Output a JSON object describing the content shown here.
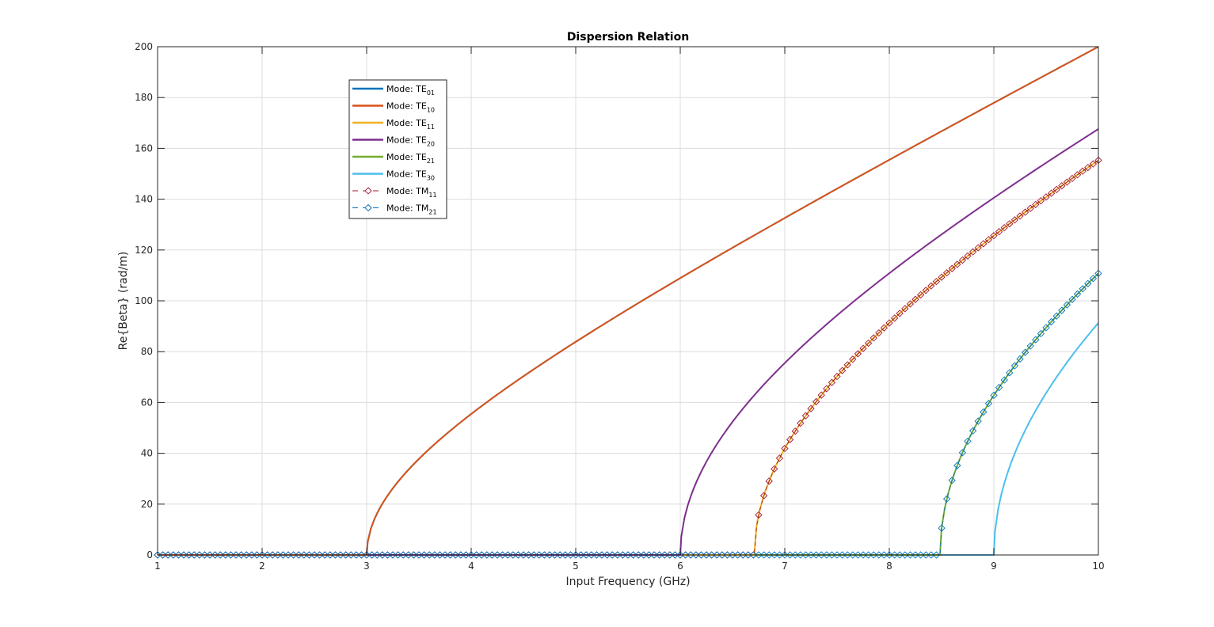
{
  "chart_data": {
    "type": "line",
    "title": "Dispersion Relation",
    "xlabel": "Input Frequency (GHz)",
    "ylabel": "Re{Beta} (rad/m)",
    "xlim": [
      1,
      10
    ],
    "ylim": [
      0,
      200
    ],
    "x_ticks": [
      1,
      2,
      3,
      4,
      5,
      6,
      7,
      8,
      9,
      10
    ],
    "y_ticks": [
      0,
      20,
      40,
      60,
      80,
      100,
      120,
      140,
      160,
      180,
      200
    ],
    "x_tick_labels": [
      "1",
      "2",
      "3",
      "4",
      "5",
      "6",
      "7",
      "8",
      "9",
      "10"
    ],
    "y_tick_labels": [
      "0",
      "20",
      "40",
      "60",
      "80",
      "100",
      "120",
      "140",
      "160",
      "180",
      "200"
    ],
    "grid": true,
    "legend_position": "top-left",
    "series": [
      {
        "label_prefix": "Mode: TE",
        "label_sub": "01",
        "color": "#0072BD",
        "style": "solid",
        "cutoff_ghz": 3.0,
        "beta_at_10ghz": 200,
        "x": [
          3.0,
          3.05,
          3.5,
          4,
          5,
          6,
          7,
          8,
          9,
          10
        ],
        "y": [
          0,
          11.1,
          37.7,
          55.5,
          83.9,
          108.9,
          132.4,
          155.3,
          177.8,
          200
        ]
      },
      {
        "label_prefix": "Mode: TE",
        "label_sub": "10",
        "color": "#D95319",
        "style": "solid",
        "cutoff_ghz": 3.0,
        "beta_at_10ghz": 200,
        "x": [
          3.0,
          3.05,
          3.5,
          4,
          5,
          6,
          7,
          8,
          9,
          10
        ],
        "y": [
          0,
          11.1,
          37.7,
          55.5,
          83.9,
          108.9,
          132.4,
          155.3,
          177.8,
          200
        ]
      },
      {
        "label_prefix": "Mode: TE",
        "label_sub": "11",
        "color": "#EDB120",
        "style": "solid",
        "cutoff_ghz": 6.708,
        "beta_at_10ghz": 155.3,
        "x": [
          6.708,
          6.75,
          7,
          7.5,
          8,
          8.5,
          9,
          9.5,
          10
        ],
        "y": [
          0,
          14.8,
          42.2,
          70.3,
          91.4,
          109.5,
          125.9,
          141.2,
          155.3
        ]
      },
      {
        "label_prefix": "Mode: TE",
        "label_sub": "20",
        "color": "#7E2F8E",
        "style": "solid",
        "cutoff_ghz": 6.0,
        "beta_at_10ghz": 167.6,
        "x": [
          6.0,
          6.05,
          6.5,
          7,
          7.5,
          8,
          8.5,
          9,
          9.5,
          10
        ],
        "y": [
          0,
          16.3,
          52.5,
          75.6,
          94.4,
          111.1,
          126.6,
          140.8,
          154.5,
          167.6
        ]
      },
      {
        "label_prefix": "Mode: TE",
        "label_sub": "21",
        "color": "#77AC30",
        "style": "solid",
        "cutoff_ghz": 8.485,
        "beta_at_10ghz": 110.8,
        "x": [
          8.485,
          8.5,
          8.75,
          9,
          9.25,
          9.5,
          9.75,
          10
        ],
        "y": [
          0,
          10.5,
          44.8,
          62.9,
          77.2,
          89.6,
          100.7,
          110.8
        ]
      },
      {
        "label_prefix": "Mode: TE",
        "label_sub": "30",
        "color": "#4DBEEE",
        "style": "solid",
        "cutoff_ghz": 9.0,
        "beta_at_10ghz": 91.3,
        "x": [
          9.0,
          9.05,
          9.25,
          9.5,
          9.75,
          10
        ],
        "y": [
          0,
          20.1,
          48.7,
          67.6,
          80.4,
          91.3
        ]
      },
      {
        "label_prefix": "Mode: TM",
        "label_sub": "11",
        "color": "#A2142F",
        "style": "dashed-diamond",
        "cutoff_ghz": 6.708,
        "beta_at_10ghz": 155.3,
        "x": [
          6.708,
          6.75,
          7,
          7.5,
          8,
          8.5,
          9,
          9.5,
          10
        ],
        "y": [
          0,
          14.8,
          42.2,
          70.3,
          91.4,
          109.5,
          125.9,
          141.2,
          155.3
        ]
      },
      {
        "label_prefix": "Mode: TM",
        "label_sub": "21",
        "color": "#0072BD",
        "style": "dashed-diamond",
        "cutoff_ghz": 8.485,
        "beta_at_10ghz": 110.8,
        "x": [
          8.485,
          8.5,
          8.75,
          9,
          9.25,
          9.5,
          9.75,
          10
        ],
        "y": [
          0,
          10.5,
          44.8,
          62.9,
          77.2,
          89.6,
          100.7,
          110.8
        ]
      }
    ]
  }
}
